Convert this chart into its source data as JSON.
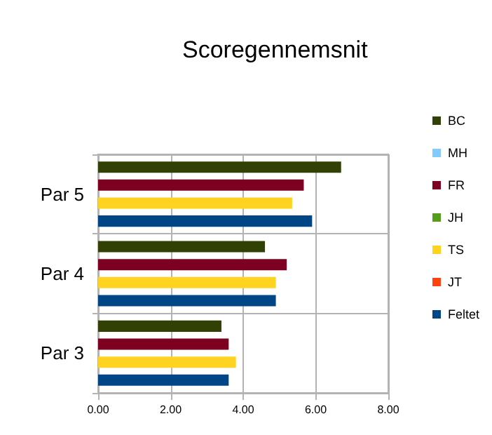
{
  "chart_data": {
    "type": "bar",
    "orientation": "horizontal",
    "title": "Scoregennemsnit",
    "categories": [
      "Par 5",
      "Par 4",
      "Par 3"
    ],
    "series": [
      {
        "name": "BC",
        "color": "#314004",
        "values": [
          6.7,
          4.6,
          3.4
        ]
      },
      {
        "name": "MH",
        "color": "#83caff",
        "values": [
          null,
          null,
          null
        ]
      },
      {
        "name": "FR",
        "color": "#7e0021",
        "values": [
          5.67,
          5.2,
          3.6
        ]
      },
      {
        "name": "JH",
        "color": "#579d1c",
        "values": [
          null,
          null,
          null
        ]
      },
      {
        "name": "TS",
        "color": "#ffd320",
        "values": [
          5.35,
          4.9,
          3.8
        ]
      },
      {
        "name": "JT",
        "color": "#ff420e",
        "values": [
          null,
          null,
          null
        ]
      },
      {
        "name": "Feltet",
        "color": "#004586",
        "values": [
          5.9,
          4.9,
          3.6
        ]
      }
    ],
    "xlim": [
      0,
      8
    ],
    "xticks": [
      {
        "value": 0,
        "label": "0.00"
      },
      {
        "value": 2,
        "label": "2.00"
      },
      {
        "value": 4,
        "label": "4.00"
      },
      {
        "value": 6,
        "label": "6.00"
      },
      {
        "value": 8,
        "label": "8.00"
      }
    ],
    "grid": true,
    "legend": "right"
  }
}
